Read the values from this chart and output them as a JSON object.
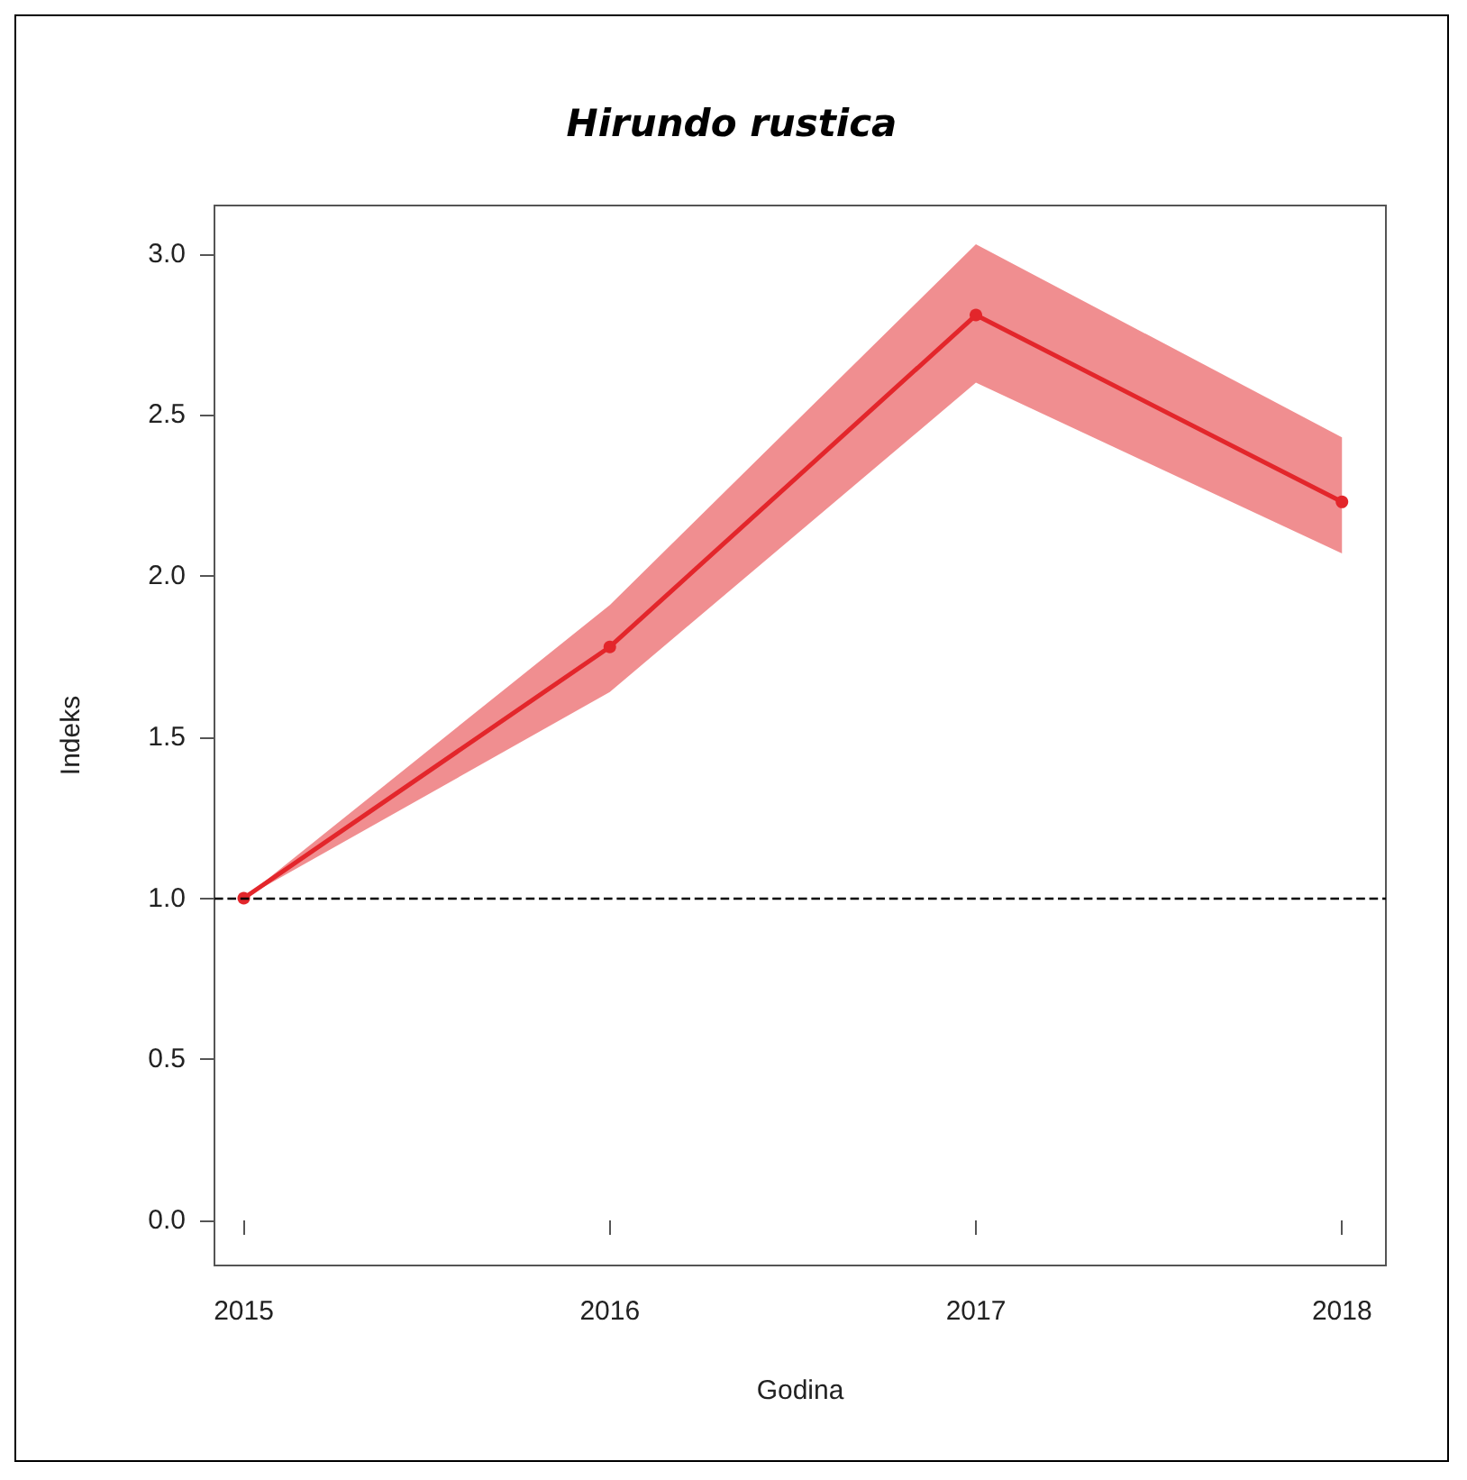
{
  "chart_data": {
    "type": "line",
    "title": "Hirundo rustica",
    "xlabel": "Godina",
    "ylabel": "Indeks",
    "x": [
      2015,
      2016,
      2017,
      2018
    ],
    "series": [
      {
        "color": "#e3262b",
        "values": [
          1.0,
          1.78,
          2.81,
          2.23
        ],
        "lower": [
          1.0,
          1.64,
          2.6,
          2.07
        ],
        "upper": [
          1.0,
          1.91,
          3.03,
          2.43
        ]
      }
    ],
    "xlim": [
      2014.92,
      2018.12
    ],
    "xticks": [
      2015,
      2016,
      2017,
      2018
    ],
    "ylim": [
      -0.14,
      3.15
    ],
    "yticks": [
      {
        "value": 0,
        "label": "0.0"
      },
      0.5,
      {
        "value": 1,
        "label": "1.0"
      },
      1.5,
      {
        "value": 2,
        "label": "2.0"
      },
      2.5,
      {
        "value": 3,
        "label": "3.0"
      }
    ],
    "ref_lines": [
      {
        "axis": "y",
        "value": 1.0,
        "color": "#000000",
        "line_style": "dashed"
      }
    ],
    "marker": "circle",
    "line_style": "solid",
    "grid": false
  }
}
